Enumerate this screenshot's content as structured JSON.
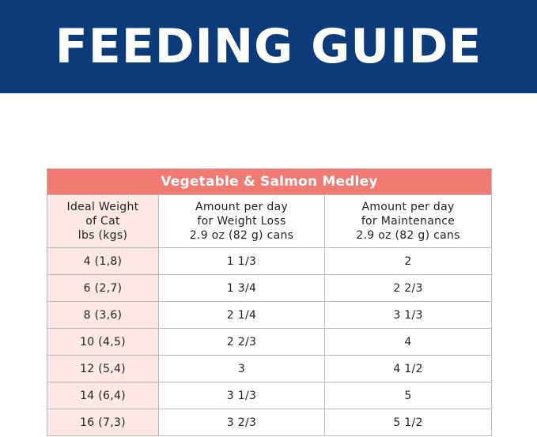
{
  "banner": {
    "title": "FEEDING GUIDE"
  },
  "table": {
    "title": "Vegetable & Salmon Medley",
    "headers": {
      "weight": [
        "Ideal Weight",
        "of Cat",
        "lbs (kgs)"
      ],
      "loss": [
        "Amount per day",
        "for Weight Loss",
        "2.9 oz (82 g) cans"
      ],
      "maintenance": [
        "Amount per day",
        "for Maintenance",
        "2.9 oz (82 g) cans"
      ]
    },
    "rows": [
      {
        "weight": "4 (1,8)",
        "loss": "1 1/3",
        "maintenance": "2"
      },
      {
        "weight": "6 (2,7)",
        "loss": "1 3/4",
        "maintenance": "2 2/3"
      },
      {
        "weight": "8 (3,6)",
        "loss": "2 1/4",
        "maintenance": "3 1/3"
      },
      {
        "weight": "10 (4,5)",
        "loss": "2 2/3",
        "maintenance": "4"
      },
      {
        "weight": "12 (5,4)",
        "loss": "3",
        "maintenance": "4 1/2"
      },
      {
        "weight": "14 (6,4)",
        "loss": "3 1/3",
        "maintenance": "5"
      },
      {
        "weight": "16 (7,3)",
        "loss": "3 2/3",
        "maintenance": "5 1/2"
      }
    ]
  },
  "colors": {
    "banner": "#0c3b7a",
    "title_row": "#f07b72",
    "weight_column": "#fde8e5"
  }
}
